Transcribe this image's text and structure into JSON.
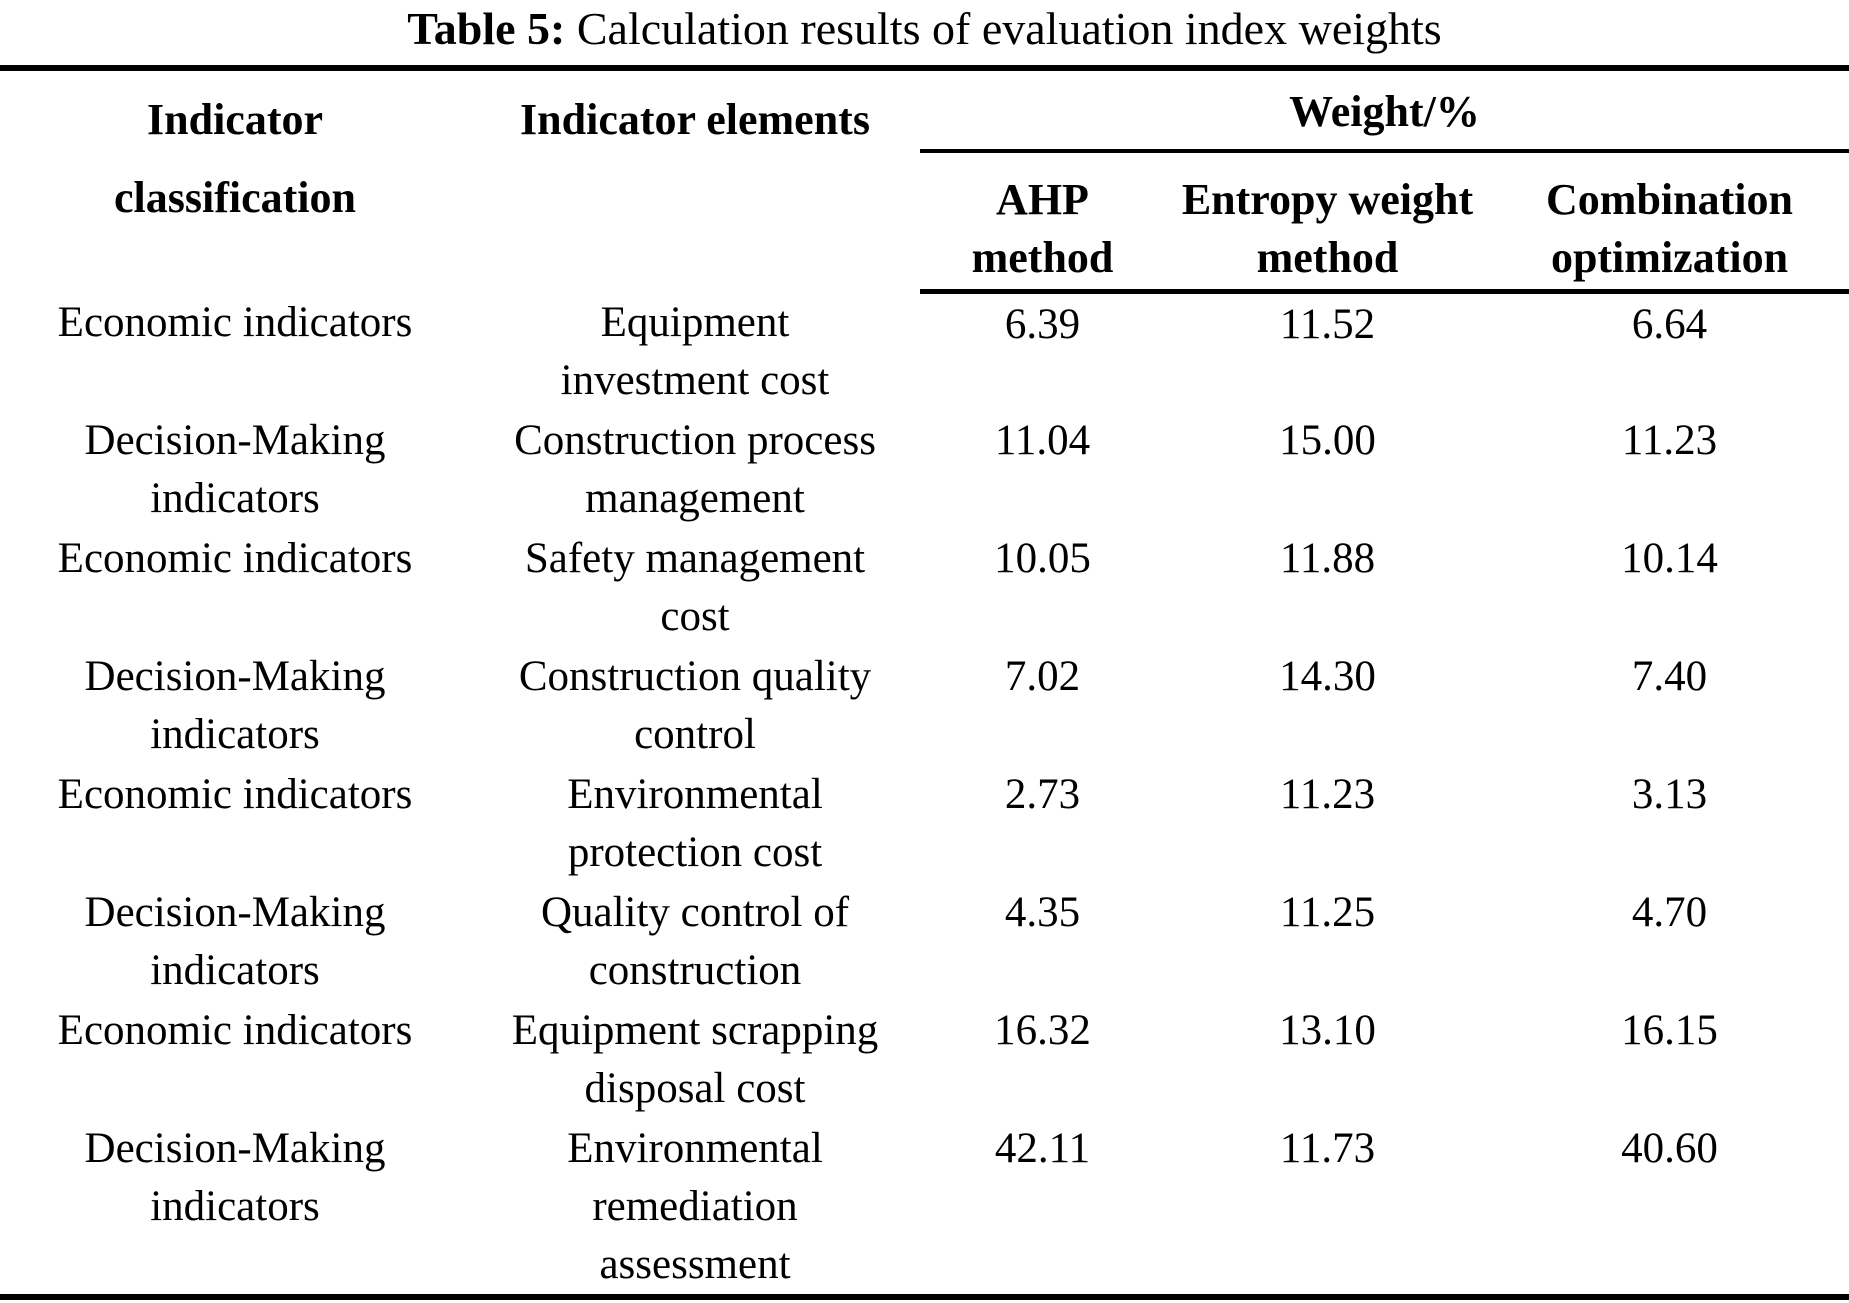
{
  "caption": {
    "label": "Table 5:",
    "text": " Calculation results of evaluation index weights"
  },
  "table": {
    "headers": {
      "classification": "Indicator\nclassification",
      "elements": "Indicator elements",
      "weight_group": "Weight/%",
      "ahp": "AHP\nmethod",
      "entropy": "Entropy weight\nmethod",
      "combination": "Combination\noptimization"
    },
    "rows": [
      {
        "classification": "Economic indicators",
        "element": "Equipment\ninvestment cost",
        "ahp": "6.39",
        "entropy": "11.52",
        "combination": "6.64"
      },
      {
        "classification": "Decision-Making\nindicators",
        "element": "Construction process\nmanagement",
        "ahp": "11.04",
        "entropy": "15.00",
        "combination": "11.23"
      },
      {
        "classification": "Economic indicators",
        "element": "Safety management\ncost",
        "ahp": "10.05",
        "entropy": "11.88",
        "combination": "10.14"
      },
      {
        "classification": "Decision-Making\nindicators",
        "element": "Construction quality\ncontrol",
        "ahp": "7.02",
        "entropy": "14.30",
        "combination": "7.40"
      },
      {
        "classification": "Economic indicators",
        "element": "Environmental\nprotection cost",
        "ahp": "2.73",
        "entropy": "11.23",
        "combination": "3.13"
      },
      {
        "classification": "Decision-Making\nindicators",
        "element": "Quality control of\nconstruction",
        "ahp": "4.35",
        "entropy": "11.25",
        "combination": "4.70"
      },
      {
        "classification": "Economic indicators",
        "element": "Equipment scrapping\ndisposal cost",
        "ahp": "16.32",
        "entropy": "13.10",
        "combination": "16.15"
      },
      {
        "classification": "Decision-Making\nindicators",
        "element": "Environmental\nremediation\nassessment",
        "ahp": "42.11",
        "entropy": "11.73",
        "combination": "40.60"
      }
    ]
  },
  "colors": {
    "background": "#ffffff",
    "text": "#000000",
    "rule": "#000000"
  }
}
